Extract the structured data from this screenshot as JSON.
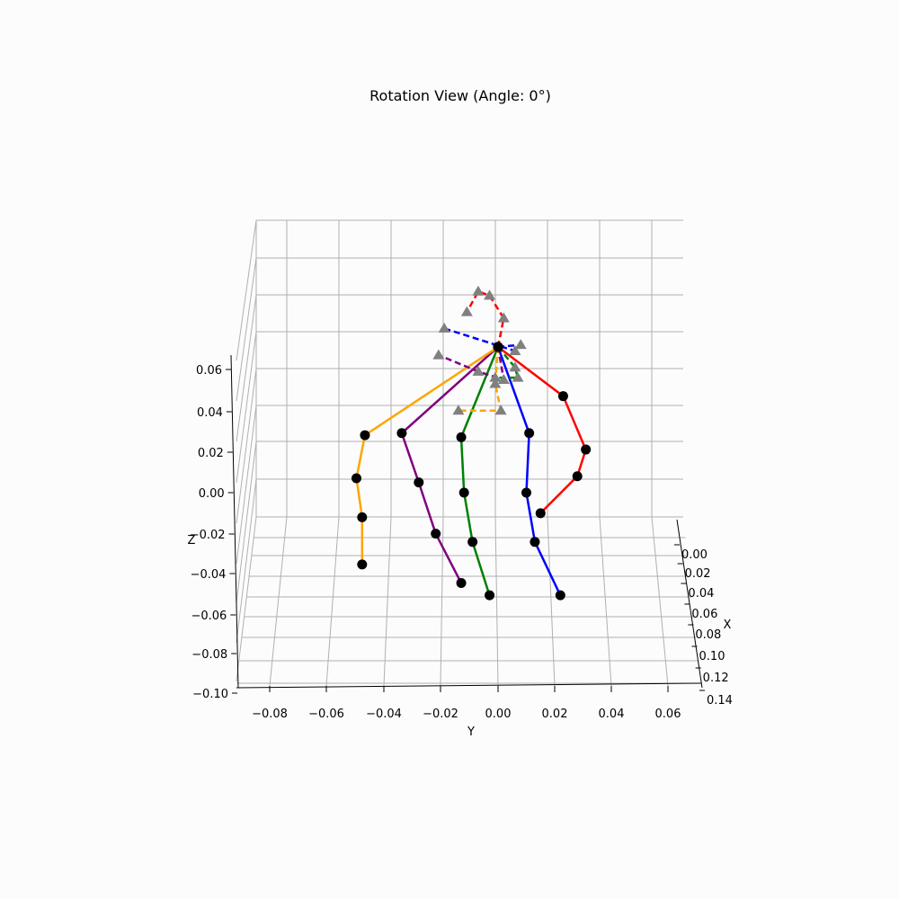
{
  "chart_data": {
    "type": "scatter",
    "projection": "3d",
    "title": "Rotation View (Angle: 0°)",
    "xlabel": "X",
    "ylabel": "Y",
    "zlabel": "Z",
    "x_ticks": [
      "0.00",
      "0.02",
      "0.04",
      "0.06",
      "0.08",
      "0.10",
      "0.12",
      "0.14"
    ],
    "y_ticks": [
      "−0.08",
      "−0.06",
      "−0.04",
      "−0.02",
      "0.00",
      "0.02",
      "0.04",
      "0.06"
    ],
    "z_ticks": [
      "−0.10",
      "−0.08",
      "−0.06",
      "−0.04",
      "−0.02",
      "0.00",
      "0.02",
      "0.04",
      "0.06"
    ],
    "grid": true,
    "marker_colors": {
      "solid_joint": "#000000",
      "dashed_joint": "#808080"
    },
    "series": [
      {
        "color": "#ff0000",
        "style": "solid",
        "marker": "circle",
        "points": [
          {
            "y": 0.0,
            "z": 0.071
          },
          {
            "y": 0.023,
            "z": 0.047
          },
          {
            "y": 0.031,
            "z": 0.021
          },
          {
            "y": 0.028,
            "z": 0.008
          },
          {
            "y": 0.015,
            "z": -0.01
          }
        ]
      },
      {
        "color": "#0000ff",
        "style": "solid",
        "marker": "circle",
        "points": [
          {
            "y": 0.0,
            "z": 0.071
          },
          {
            "y": 0.011,
            "z": 0.029
          },
          {
            "y": 0.01,
            "z": 0.0
          },
          {
            "y": 0.013,
            "z": -0.024
          },
          {
            "y": 0.022,
            "z": -0.05
          }
        ]
      },
      {
        "color": "#008000",
        "style": "solid",
        "marker": "circle",
        "points": [
          {
            "y": 0.0,
            "z": 0.071
          },
          {
            "y": -0.013,
            "z": 0.027
          },
          {
            "y": -0.012,
            "z": 0.0
          },
          {
            "y": -0.009,
            "z": -0.024
          },
          {
            "y": -0.003,
            "z": -0.05
          }
        ]
      },
      {
        "color": "#800080",
        "style": "solid",
        "marker": "circle",
        "points": [
          {
            "y": 0.0,
            "z": 0.071
          },
          {
            "y": -0.034,
            "z": 0.029
          },
          {
            "y": -0.028,
            "z": 0.005
          },
          {
            "y": -0.022,
            "z": -0.02
          },
          {
            "y": -0.013,
            "z": -0.044
          }
        ]
      },
      {
        "color": "#ffa500",
        "style": "solid",
        "marker": "circle",
        "points": [
          {
            "y": 0.0,
            "z": 0.071
          },
          {
            "y": -0.047,
            "z": 0.028
          },
          {
            "y": -0.05,
            "z": 0.007
          },
          {
            "y": -0.048,
            "z": -0.012
          },
          {
            "y": -0.048,
            "z": -0.035
          }
        ]
      },
      {
        "color": "#ff0000",
        "style": "dashed",
        "marker": "triangle",
        "points": [
          {
            "y": 0.0,
            "z": 0.071
          },
          {
            "y": 0.002,
            "z": 0.085
          },
          {
            "y": -0.003,
            "z": 0.096
          },
          {
            "y": -0.007,
            "z": 0.098
          },
          {
            "y": -0.011,
            "z": 0.088
          }
        ]
      },
      {
        "color": "#0000ff",
        "style": "dashed",
        "marker": "triangle",
        "points": [
          {
            "y": 0.0,
            "z": 0.071
          },
          {
            "y": 0.008,
            "z": 0.072
          },
          {
            "y": 0.006,
            "z": 0.069
          },
          {
            "y": -0.019,
            "z": 0.08
          }
        ]
      },
      {
        "color": "#008000",
        "style": "dashed",
        "marker": "triangle",
        "points": [
          {
            "y": 0.0,
            "z": 0.071
          },
          {
            "y": 0.006,
            "z": 0.061
          },
          {
            "y": 0.007,
            "z": 0.056
          },
          {
            "y": -0.001,
            "z": 0.056
          }
        ]
      },
      {
        "color": "#800080",
        "style": "dashed",
        "marker": "triangle",
        "points": [
          {
            "y": 0.0,
            "z": 0.071
          },
          {
            "y": 0.002,
            "z": 0.055
          },
          {
            "y": -0.007,
            "z": 0.059
          },
          {
            "y": -0.021,
            "z": 0.067
          }
        ]
      },
      {
        "color": "#ffa500",
        "style": "dashed",
        "marker": "triangle",
        "points": [
          {
            "y": 0.0,
            "z": 0.071
          },
          {
            "y": -0.001,
            "z": 0.053
          },
          {
            "y": 0.001,
            "z": 0.04
          },
          {
            "y": -0.014,
            "z": 0.04
          }
        ]
      }
    ]
  }
}
